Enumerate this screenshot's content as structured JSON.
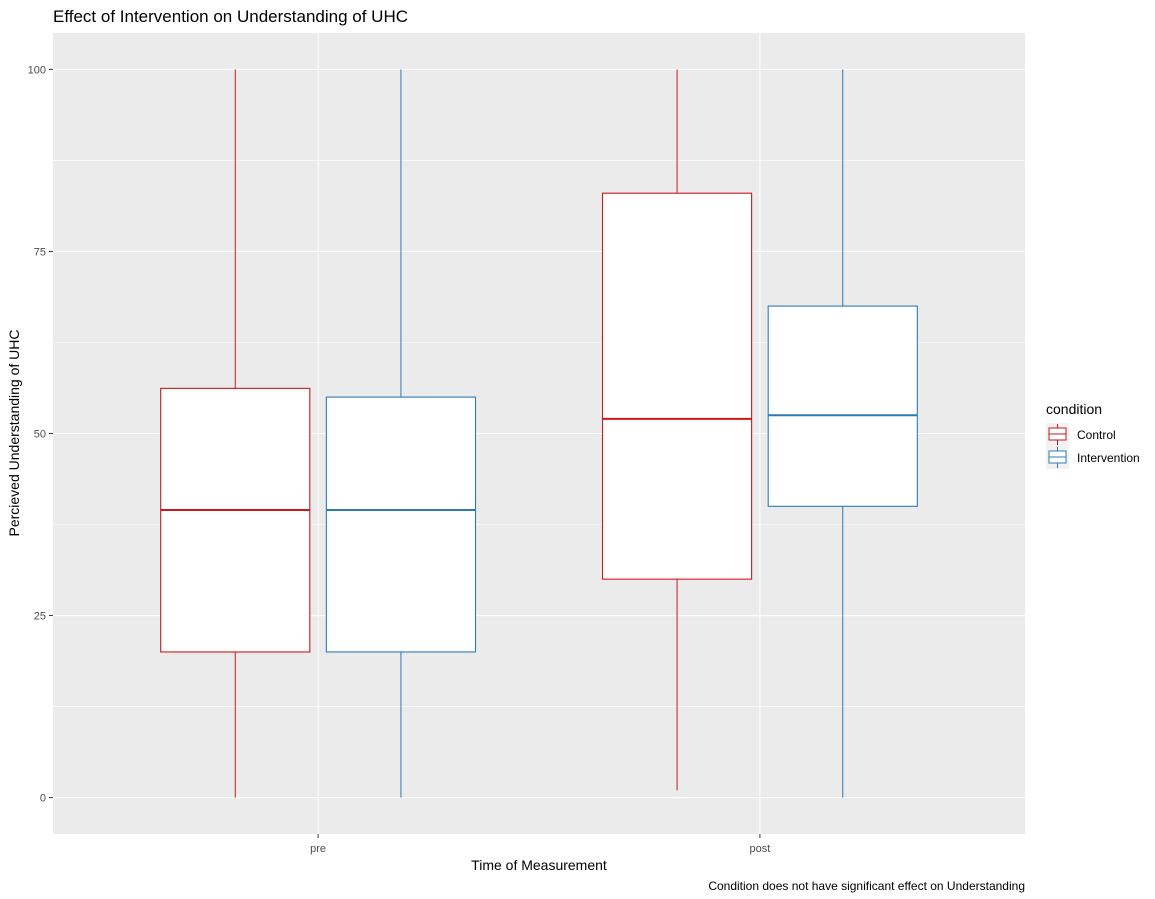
{
  "chart_data": {
    "type": "boxplot",
    "title": "Effect of Intervention on Understanding of UHC",
    "xlabel": "Time of Measurement",
    "ylabel": "Percieved Understanding of UHC",
    "caption": "Condition does not have significant effect on Understanding",
    "categories": [
      "pre",
      "post"
    ],
    "ylim": [
      -5,
      105
    ],
    "yticks": [
      0,
      25,
      50,
      75,
      100
    ],
    "grid": true,
    "legend": {
      "title": "condition",
      "position": "right"
    },
    "series": [
      {
        "name": "Control",
        "color": "#cb181d",
        "boxes": [
          {
            "category": "pre",
            "min": 0,
            "q1": 20,
            "median": 39.5,
            "q3": 56.2,
            "max": 100
          },
          {
            "category": "post",
            "min": 1,
            "q1": 30,
            "median": 52,
            "q3": 83,
            "max": 100
          }
        ]
      },
      {
        "name": "Intervention",
        "color": "#2c7bb6",
        "boxes": [
          {
            "category": "pre",
            "min": 0,
            "q1": 20,
            "median": 39.5,
            "q3": 55,
            "max": 100
          },
          {
            "category": "post",
            "min": 0,
            "q1": 40,
            "median": 52.5,
            "q3": 67.5,
            "max": 100
          }
        ]
      }
    ]
  }
}
